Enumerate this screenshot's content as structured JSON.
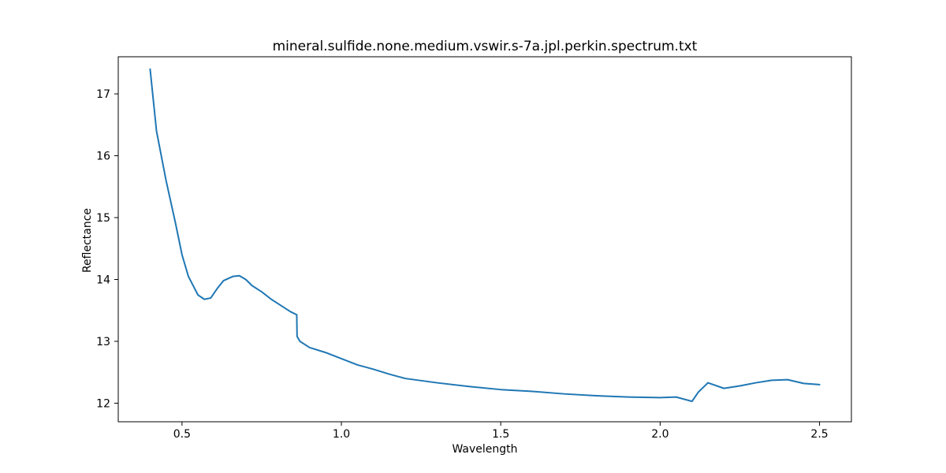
{
  "chart_data": {
    "type": "line",
    "title": "mineral.sulfide.none.medium.vswir.s-7a.jpl.perkin.spectrum.txt",
    "xlabel": "Wavelength",
    "ylabel": "Reflectance",
    "xlim": [
      0.3,
      2.6
    ],
    "ylim": [
      11.7,
      17.6
    ],
    "xticks": [
      0.5,
      1.0,
      1.5,
      2.0,
      2.5
    ],
    "xtick_labels": [
      "0.5",
      "1.0",
      "1.5",
      "2.0",
      "2.5"
    ],
    "yticks": [
      12,
      13,
      14,
      15,
      16,
      17
    ],
    "ytick_labels": [
      "12",
      "13",
      "14",
      "15",
      "16",
      "17"
    ],
    "grid": false,
    "legend": "none",
    "series": [
      {
        "color": "#1f77b4",
        "x": [
          0.4,
          0.42,
          0.45,
          0.48,
          0.5,
          0.52,
          0.55,
          0.57,
          0.59,
          0.61,
          0.63,
          0.66,
          0.68,
          0.7,
          0.72,
          0.75,
          0.78,
          0.81,
          0.84,
          0.86,
          0.861,
          0.87,
          0.9,
          0.95,
          1.0,
          1.05,
          1.1,
          1.15,
          1.2,
          1.3,
          1.4,
          1.5,
          1.6,
          1.7,
          1.8,
          1.9,
          2.0,
          2.05,
          2.1,
          2.12,
          2.15,
          2.2,
          2.25,
          2.3,
          2.35,
          2.4,
          2.45,
          2.5
        ],
        "y": [
          17.4,
          16.4,
          15.6,
          14.9,
          14.4,
          14.05,
          13.75,
          13.68,
          13.7,
          13.85,
          13.98,
          14.05,
          14.06,
          14.0,
          13.9,
          13.8,
          13.68,
          13.58,
          13.48,
          13.43,
          13.08,
          13.0,
          12.9,
          12.82,
          12.72,
          12.62,
          12.55,
          12.47,
          12.4,
          12.33,
          12.27,
          12.22,
          12.19,
          12.15,
          12.12,
          12.1,
          12.09,
          12.1,
          12.03,
          12.18,
          12.33,
          12.24,
          12.28,
          12.33,
          12.37,
          12.38,
          12.32,
          12.3
        ]
      }
    ]
  }
}
